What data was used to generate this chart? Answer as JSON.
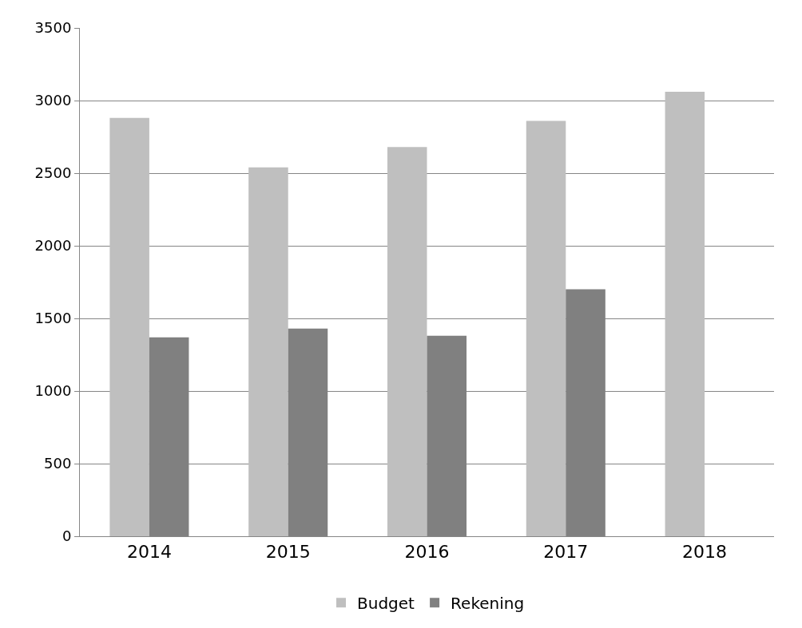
{
  "chart_data": {
    "type": "bar",
    "categories": [
      "2014",
      "2015",
      "2016",
      "2017",
      "2018"
    ],
    "series": [
      {
        "name": "Budget",
        "color": "#bfbfbf",
        "values": [
          2880,
          2540,
          2680,
          2860,
          3060
        ]
      },
      {
        "name": "Rekening",
        "color": "#808080",
        "values": [
          1370,
          1430,
          1380,
          1700,
          null
        ]
      }
    ],
    "ylim": [
      0,
      3500
    ],
    "yticks": [
      0,
      500,
      1000,
      1500,
      2000,
      2500,
      3000,
      3500
    ],
    "grid": "y",
    "legend": "bottom"
  }
}
